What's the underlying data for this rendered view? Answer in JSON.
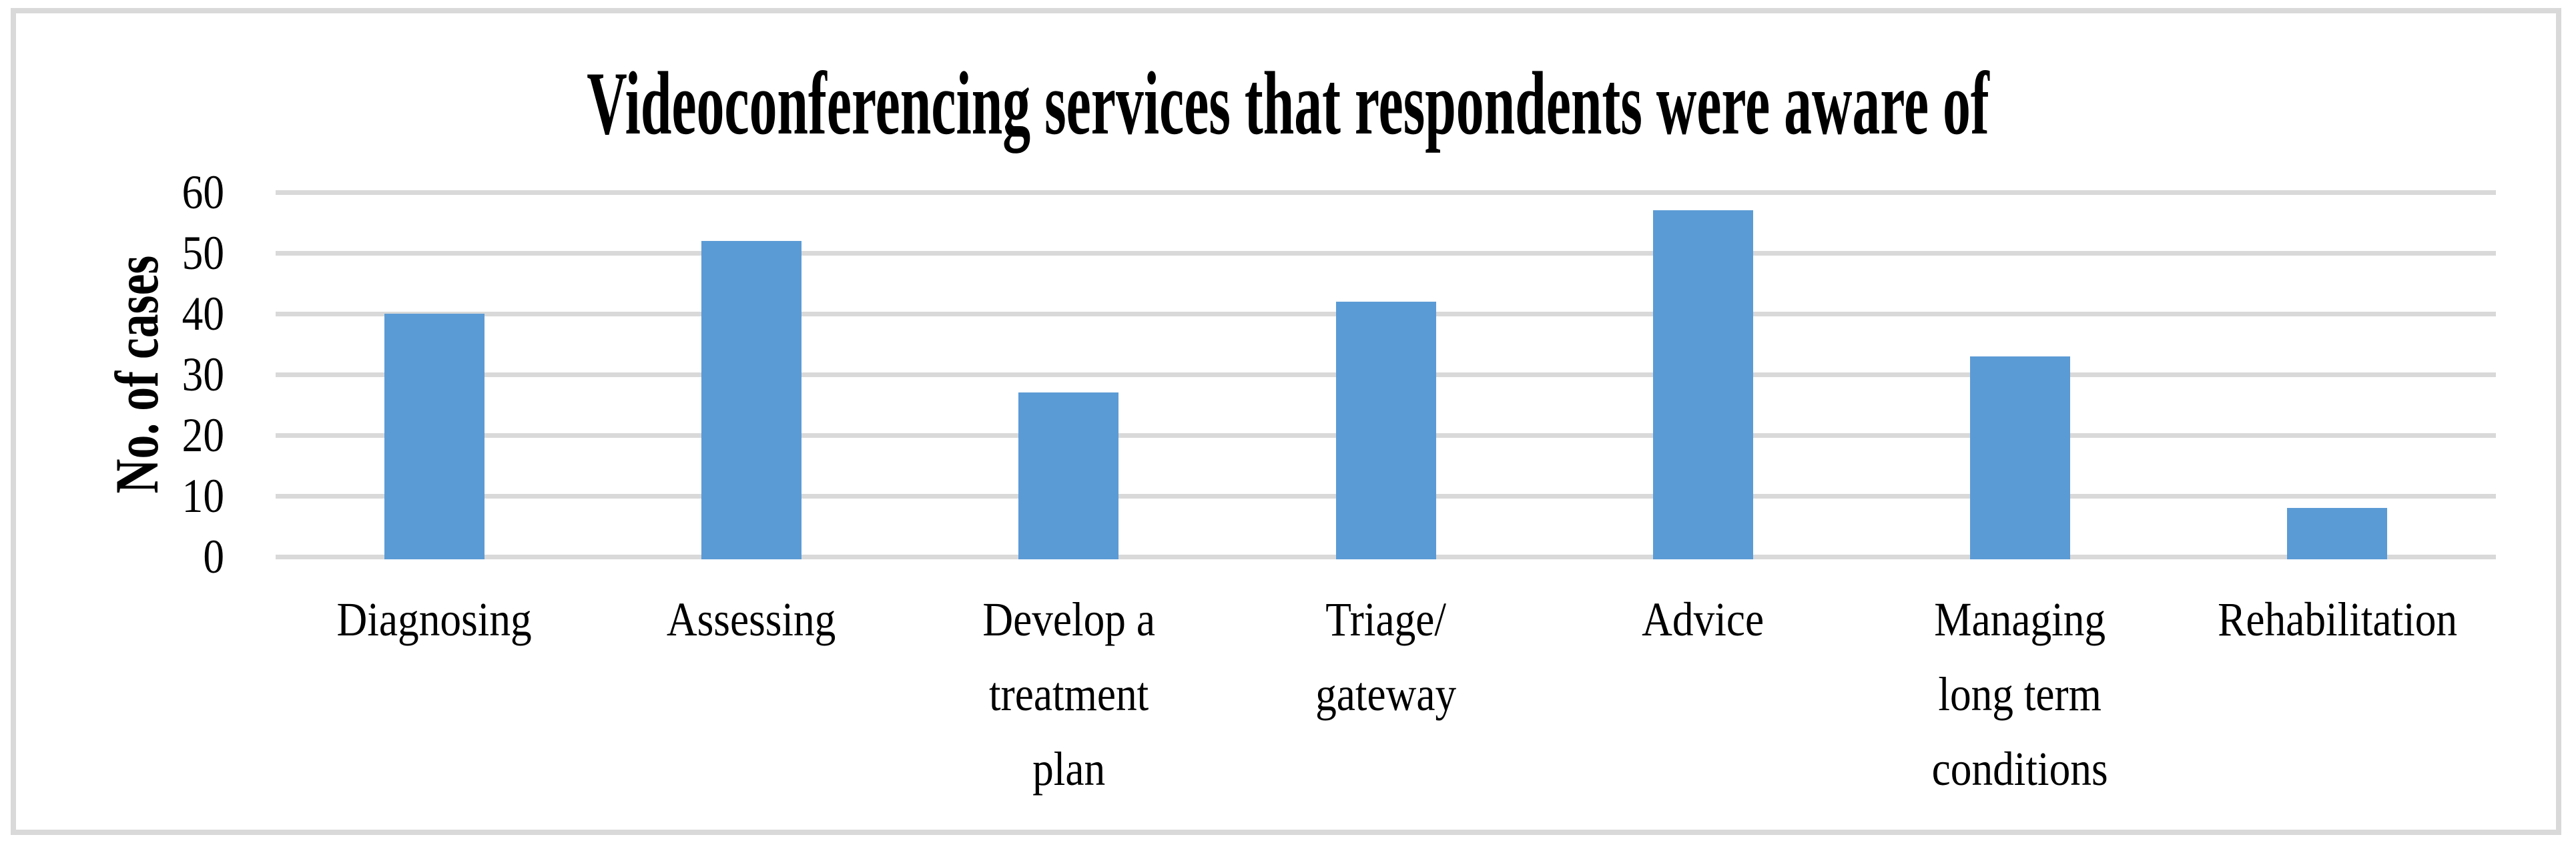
{
  "chart_data": {
    "type": "bar",
    "title": "Videoconferencing services that respondents were aware of",
    "categories": [
      "Diagnosing",
      "Assessing",
      "Develop a\ntreatment\nplan",
      "Triage/\ngateway",
      "Advice",
      "Managing\nlong term\nconditions",
      "Rehabilitation"
    ],
    "values": [
      40,
      52,
      27,
      42,
      57,
      33,
      8
    ],
    "xlabel": "",
    "ylabel": "No. of cases",
    "ylim": [
      0,
      60
    ],
    "yticks": [
      0,
      10,
      20,
      30,
      40,
      50,
      60
    ],
    "grid": "horizontal",
    "legend": "none",
    "colors": {
      "bar": "#5B9BD5",
      "gridline": "#D9D9D9",
      "axis_line": "#D9D9D9",
      "figure_border": "#D9D9D9",
      "text": "#000000",
      "background": "#FFFFFF"
    }
  }
}
